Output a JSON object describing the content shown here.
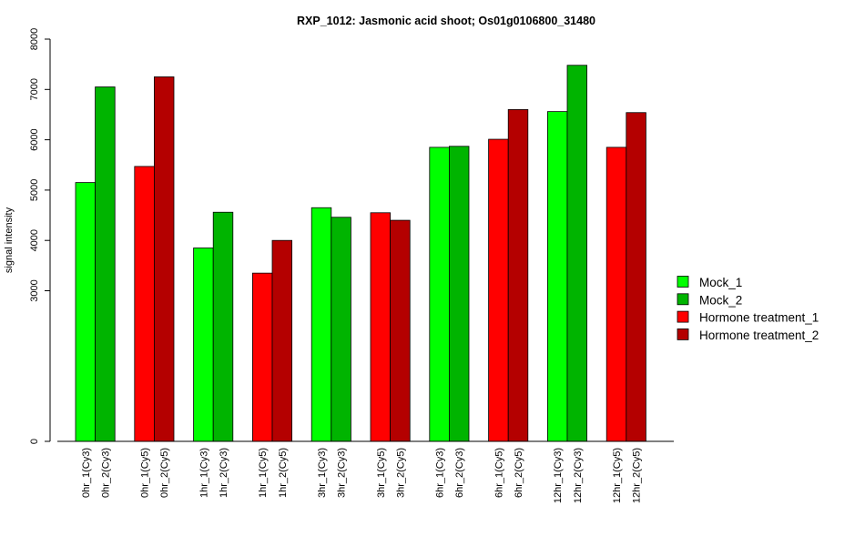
{
  "chart_data": {
    "type": "bar",
    "title": "RXP_1012: Jasmonic acid shoot; Os01g0106800_31480",
    "xlabel": "",
    "ylabel": "signal intensity",
    "ylim": [
      0,
      8000
    ],
    "yticks": [
      0,
      3000,
      4000,
      5000,
      6000,
      7000,
      8000
    ],
    "y_scale": "broken",
    "grid": false,
    "legend_position": "right",
    "bars": [
      {
        "label": "0hr_1(Cy3)",
        "value": 5150,
        "series": 0
      },
      {
        "label": "0hr_2(Cy3)",
        "value": 7050,
        "series": 1
      },
      {
        "label": "0hr_1(Cy5)",
        "value": 5470,
        "series": 2
      },
      {
        "label": "0hr_2(Cy5)",
        "value": 7250,
        "series": 3
      },
      {
        "label": "1hr_1(Cy3)",
        "value": 3850,
        "series": 0
      },
      {
        "label": "1hr_2(Cy3)",
        "value": 4560,
        "series": 1
      },
      {
        "label": "1hr_1(Cy5)",
        "value": 3350,
        "series": 2
      },
      {
        "label": "1hr_2(Cy5)",
        "value": 4000,
        "series": 3
      },
      {
        "label": "3hr_1(Cy3)",
        "value": 4650,
        "series": 0
      },
      {
        "label": "3hr_2(Cy3)",
        "value": 4460,
        "series": 1
      },
      {
        "label": "3hr_1(Cy5)",
        "value": 4550,
        "series": 2
      },
      {
        "label": "3hr_2(Cy5)",
        "value": 4400,
        "series": 3
      },
      {
        "label": "6hr_1(Cy3)",
        "value": 5850,
        "series": 0
      },
      {
        "label": "6hr_2(Cy3)",
        "value": 5870,
        "series": 1
      },
      {
        "label": "6hr_1(Cy5)",
        "value": 6010,
        "series": 2
      },
      {
        "label": "6hr_2(Cy5)",
        "value": 6600,
        "series": 3
      },
      {
        "label": "12hr_1(Cy3)",
        "value": 6560,
        "series": 0
      },
      {
        "label": "12hr_2(Cy3)",
        "value": 7480,
        "series": 1
      },
      {
        "label": "12hr_1(Cy5)",
        "value": 5850,
        "series": 2
      },
      {
        "label": "12hr_2(Cy5)",
        "value": 6540,
        "series": 3
      }
    ],
    "series": [
      {
        "name": "Mock_1",
        "color": "#00ff00"
      },
      {
        "name": "Mock_2",
        "color": "#00b400"
      },
      {
        "name": "Hormone treatment_1",
        "color": "#ff0000"
      },
      {
        "name": "Hormone treatment_2",
        "color": "#b40000"
      }
    ]
  }
}
